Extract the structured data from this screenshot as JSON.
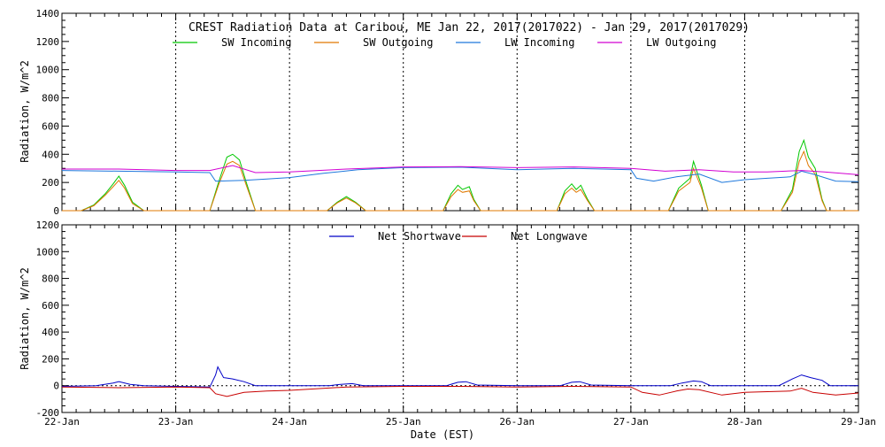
{
  "chart_data": [
    {
      "type": "line",
      "title": "CREST Radiation Data at Caribou, ME   Jan 22, 2017(2017022) - Jan 29, 2017(2017029)",
      "ylabel": "Radiation, W/m^2",
      "xlabel": "",
      "xlim": [
        22,
        29
      ],
      "ylim": [
        0,
        1400
      ],
      "yticks": [
        0,
        200,
        400,
        600,
        800,
        1000,
        1200,
        1400
      ],
      "grid": true,
      "legend_position": "top-center",
      "series": [
        {
          "name": "SW Incoming",
          "color": "#00c800",
          "x": [
            22,
            22.17,
            22.28,
            22.38,
            22.45,
            22.5,
            22.55,
            22.62,
            22.72,
            22.9,
            23.17,
            23.3,
            23.38,
            23.45,
            23.5,
            23.56,
            23.62,
            23.7,
            23.9,
            24.2,
            24.33,
            24.42,
            24.5,
            24.58,
            24.67,
            24.9,
            25.2,
            25.35,
            25.42,
            25.48,
            25.52,
            25.58,
            25.62,
            25.68,
            25.9,
            26.2,
            26.35,
            26.42,
            26.48,
            26.52,
            26.56,
            26.62,
            26.68,
            26.9,
            27.2,
            27.33,
            27.42,
            27.52,
            27.55,
            27.62,
            27.68,
            27.9,
            28.15,
            28.32,
            28.42,
            28.48,
            28.52,
            28.56,
            28.62,
            28.68,
            28.72,
            29
          ],
          "values": [
            0,
            0,
            40,
            120,
            190,
            245,
            180,
            60,
            0,
            0,
            0,
            0,
            210,
            380,
            400,
            360,
            200,
            0,
            0,
            0,
            0,
            60,
            100,
            60,
            0,
            0,
            0,
            0,
            120,
            180,
            150,
            170,
            80,
            0,
            0,
            0,
            0,
            140,
            190,
            150,
            180,
            80,
            0,
            0,
            0,
            0,
            160,
            230,
            350,
            180,
            0,
            0,
            0,
            0,
            150,
            420,
            500,
            380,
            300,
            80,
            0,
            0
          ]
        },
        {
          "name": "SW Outgoing",
          "color": "#e07800",
          "x": [
            22,
            22.17,
            22.28,
            22.38,
            22.45,
            22.5,
            22.55,
            22.62,
            22.72,
            22.9,
            23.17,
            23.3,
            23.38,
            23.45,
            23.5,
            23.56,
            23.62,
            23.7,
            23.9,
            24.2,
            24.33,
            24.42,
            24.5,
            24.58,
            24.67,
            24.9,
            25.2,
            25.35,
            25.42,
            25.48,
            25.52,
            25.58,
            25.62,
            25.68,
            25.9,
            26.2,
            26.35,
            26.42,
            26.48,
            26.52,
            26.56,
            26.62,
            26.68,
            26.9,
            27.2,
            27.33,
            27.42,
            27.52,
            27.55,
            27.62,
            27.68,
            27.9,
            28.15,
            28.32,
            28.42,
            28.48,
            28.52,
            28.56,
            28.62,
            28.68,
            28.72,
            29
          ],
          "values": [
            0,
            0,
            35,
            110,
            170,
            215,
            160,
            50,
            0,
            0,
            0,
            0,
            190,
            330,
            350,
            320,
            180,
            0,
            0,
            0,
            0,
            55,
            90,
            55,
            0,
            0,
            0,
            0,
            100,
            150,
            130,
            140,
            70,
            0,
            0,
            0,
            0,
            120,
            160,
            130,
            150,
            70,
            0,
            0,
            0,
            0,
            140,
            200,
            300,
            160,
            0,
            0,
            0,
            0,
            130,
            350,
            420,
            320,
            260,
            70,
            0,
            0
          ]
        },
        {
          "name": "LW Incoming",
          "color": "#1e78dc",
          "x": [
            22,
            22.5,
            23,
            23.3,
            23.35,
            23.6,
            23.8,
            24,
            24.3,
            24.6,
            25,
            25.5,
            26,
            26.5,
            27,
            27.05,
            27.2,
            27.4,
            27.6,
            27.8,
            28,
            28.2,
            28.4,
            28.5,
            28.6,
            28.8,
            29
          ],
          "values": [
            285,
            280,
            275,
            270,
            210,
            215,
            225,
            235,
            265,
            290,
            305,
            308,
            290,
            300,
            290,
            230,
            210,
            240,
            260,
            200,
            220,
            230,
            240,
            280,
            260,
            210,
            205
          ]
        },
        {
          "name": "LW Outgoing",
          "color": "#d200d2",
          "x": [
            22,
            22.5,
            23,
            23.3,
            23.5,
            23.7,
            24,
            24.5,
            25,
            25.5,
            26,
            26.5,
            27,
            27.3,
            27.6,
            27.9,
            28.2,
            28.5,
            28.7,
            29
          ],
          "values": [
            295,
            295,
            285,
            285,
            320,
            270,
            275,
            295,
            310,
            312,
            305,
            310,
            300,
            280,
            290,
            275,
            275,
            285,
            275,
            255
          ]
        }
      ]
    },
    {
      "type": "line",
      "title": "",
      "ylabel": "Radiation, W/m^2",
      "xlabel": "Date (EST)",
      "xlim": [
        22,
        29
      ],
      "ylim": [
        -200,
        1200
      ],
      "yticks": [
        -200,
        0,
        200,
        400,
        600,
        800,
        1000,
        1200
      ],
      "xticks": [
        22,
        23,
        24,
        25,
        26,
        27,
        28,
        29
      ],
      "xtick_labels": [
        "22-Jan",
        "23-Jan",
        "24-Jan",
        "25-Jan",
        "26-Jan",
        "27-Jan",
        "28-Jan",
        "29-Jan"
      ],
      "grid": true,
      "legend_position": "top-center",
      "series": [
        {
          "name": "Net Shortwave",
          "color": "#0000c8",
          "x": [
            22,
            22.3,
            22.45,
            22.5,
            22.6,
            22.72,
            23,
            23.3,
            23.35,
            23.37,
            23.42,
            23.5,
            23.6,
            23.7,
            24,
            24.35,
            24.45,
            24.55,
            24.65,
            25,
            25.38,
            25.48,
            25.55,
            25.65,
            26,
            26.38,
            26.48,
            26.55,
            26.65,
            27,
            27.35,
            27.45,
            27.55,
            27.62,
            27.7,
            28,
            28.3,
            28.42,
            28.5,
            28.58,
            28.68,
            28.75,
            29
          ],
          "values": [
            -5,
            0,
            20,
            30,
            10,
            0,
            -5,
            -10,
            80,
            140,
            60,
            50,
            30,
            0,
            0,
            0,
            10,
            15,
            0,
            0,
            0,
            25,
            30,
            5,
            0,
            0,
            25,
            30,
            5,
            0,
            0,
            20,
            35,
            30,
            0,
            0,
            0,
            50,
            80,
            60,
            40,
            0,
            0
          ]
        },
        {
          "name": "Net Longwave",
          "color": "#c80000",
          "x": [
            22,
            22.5,
            23,
            23.3,
            23.35,
            23.45,
            23.6,
            23.8,
            24,
            24.5,
            25,
            25.5,
            26,
            26.5,
            27,
            27.1,
            27.25,
            27.4,
            27.5,
            27.6,
            27.8,
            28,
            28.2,
            28.4,
            28.5,
            28.6,
            28.8,
            29
          ],
          "values": [
            -10,
            -15,
            -10,
            -15,
            -60,
            -80,
            -50,
            -40,
            -35,
            -10,
            -5,
            -5,
            -10,
            -5,
            -10,
            -50,
            -70,
            -40,
            -25,
            -30,
            -70,
            -50,
            -45,
            -40,
            -20,
            -50,
            -70,
            -55
          ]
        }
      ]
    }
  ],
  "labels": {
    "title": "CREST Radiation Data at Caribou, ME   Jan 22, 2017(2017022) - Jan 29, 2017(2017029)",
    "ylabel_top": "Radiation, W/m^2",
    "ylabel_bottom": "Radiation, W/m^2",
    "xlabel": "Date (EST)"
  }
}
